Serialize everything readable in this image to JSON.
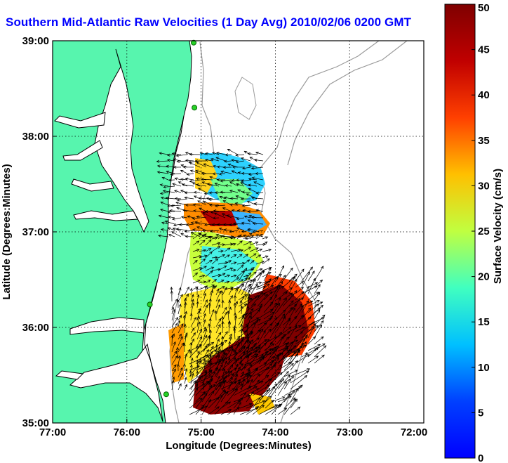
{
  "title": "Southern Mid-Atlantic Raw Velocities (1 Day Avg) 2010/02/06 0200 GMT",
  "map": {
    "xlabel": "Longitude (Degrees:Minutes)",
    "ylabel": "Latitude (Degrees:Minutes)",
    "lon_range": [
      -77,
      -72
    ],
    "lat_range": [
      35,
      39
    ],
    "x_ticks": [
      "77:00",
      "76:00",
      "75:00",
      "74:00",
      "73:00",
      "72:00"
    ],
    "y_ticks": [
      "35:00",
      "36:00",
      "37:00",
      "38:00",
      "39:00"
    ],
    "grid": "dotted",
    "land_color": "#57f5ae",
    "water_color": "#ffffff"
  },
  "colorbar": {
    "label": "Surface Velocity (cm/s)",
    "range": [
      0,
      50
    ],
    "ticks": [
      "0",
      "5",
      "10",
      "15",
      "20",
      "25",
      "30",
      "35",
      "40",
      "45",
      "50"
    ],
    "colormap": "jet"
  },
  "stations": [
    {
      "lon": -75.1,
      "lat": 38.98
    },
    {
      "lon": -75.09,
      "lat": 38.3
    },
    {
      "lon": -75.69,
      "lat": 36.24
    },
    {
      "lon": -75.47,
      "lat": 35.3
    }
  ]
}
